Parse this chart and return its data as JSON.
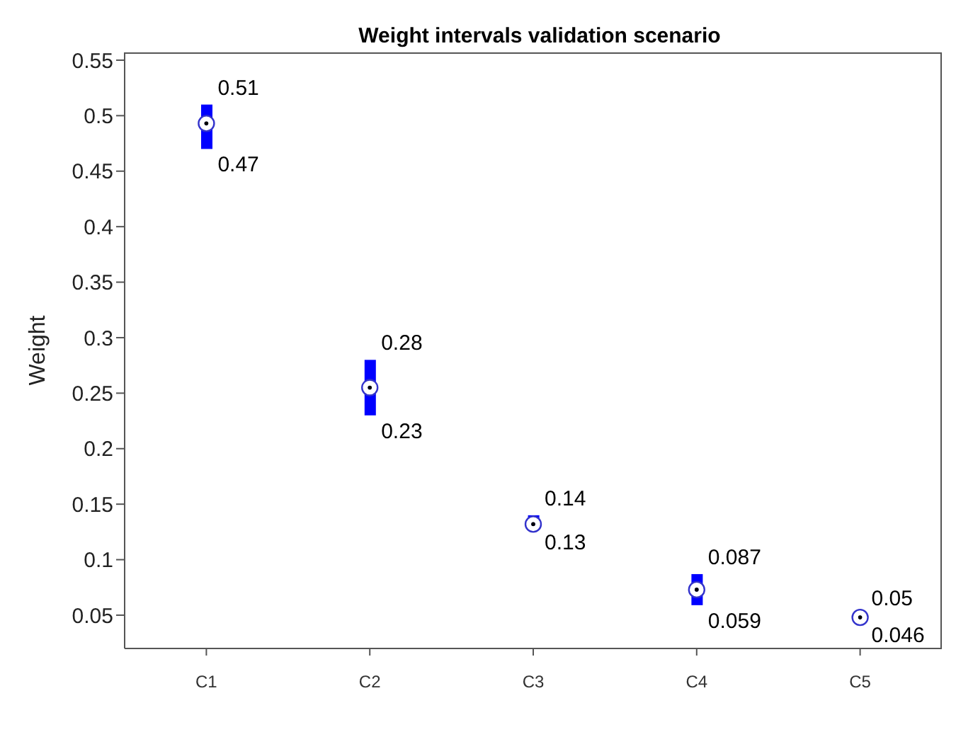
{
  "chart_data": {
    "type": "box",
    "title": "Weight intervals validation scenario",
    "ylabel": "Weight",
    "categories": [
      "C1",
      "C2",
      "C3",
      "C4",
      "C5"
    ],
    "color": "#0000ff",
    "marker": "circle",
    "boxes": [
      {
        "low": 0.47,
        "q1": 0.47,
        "median": 0.493,
        "q3": 0.51,
        "high": 0.51
      },
      {
        "low": 0.23,
        "q1": 0.23,
        "median": 0.255,
        "q3": 0.28,
        "high": 0.28
      },
      {
        "low": 0.13,
        "q1": 0.13,
        "median": 0.132,
        "q3": 0.14,
        "high": 0.14
      },
      {
        "low": 0.059,
        "q1": 0.059,
        "median": 0.073,
        "q3": 0.087,
        "high": 0.087
      },
      {
        "low": 0.046,
        "q1": 0.046,
        "median": 0.048,
        "q3": 0.05,
        "high": 0.05
      }
    ],
    "ylim": [
      0.02,
      0.557
    ],
    "yticks": [
      0.05,
      0.1,
      0.15,
      0.2,
      0.25,
      0.3,
      0.35,
      0.4,
      0.45,
      0.5,
      0.55
    ],
    "grid": false,
    "annotations": [
      {
        "text": "0.51",
        "x": "C1",
        "y": 0.51
      },
      {
        "text": "0.47",
        "x": "C1",
        "y": 0.47
      },
      {
        "text": "0.28",
        "x": "C2",
        "y": 0.28
      },
      {
        "text": "0.23",
        "x": "C2",
        "y": 0.23
      },
      {
        "text": "0.14",
        "x": "C3",
        "y": 0.14
      },
      {
        "text": "0.13",
        "x": "C3",
        "y": 0.13
      },
      {
        "text": "0.087",
        "x": "C4",
        "y": 0.087
      },
      {
        "text": "0.059",
        "x": "C4",
        "y": 0.059
      },
      {
        "text": "0.05",
        "x": "C5",
        "y": 0.05
      },
      {
        "text": "0.046",
        "x": "C5",
        "y": 0.046
      }
    ]
  }
}
